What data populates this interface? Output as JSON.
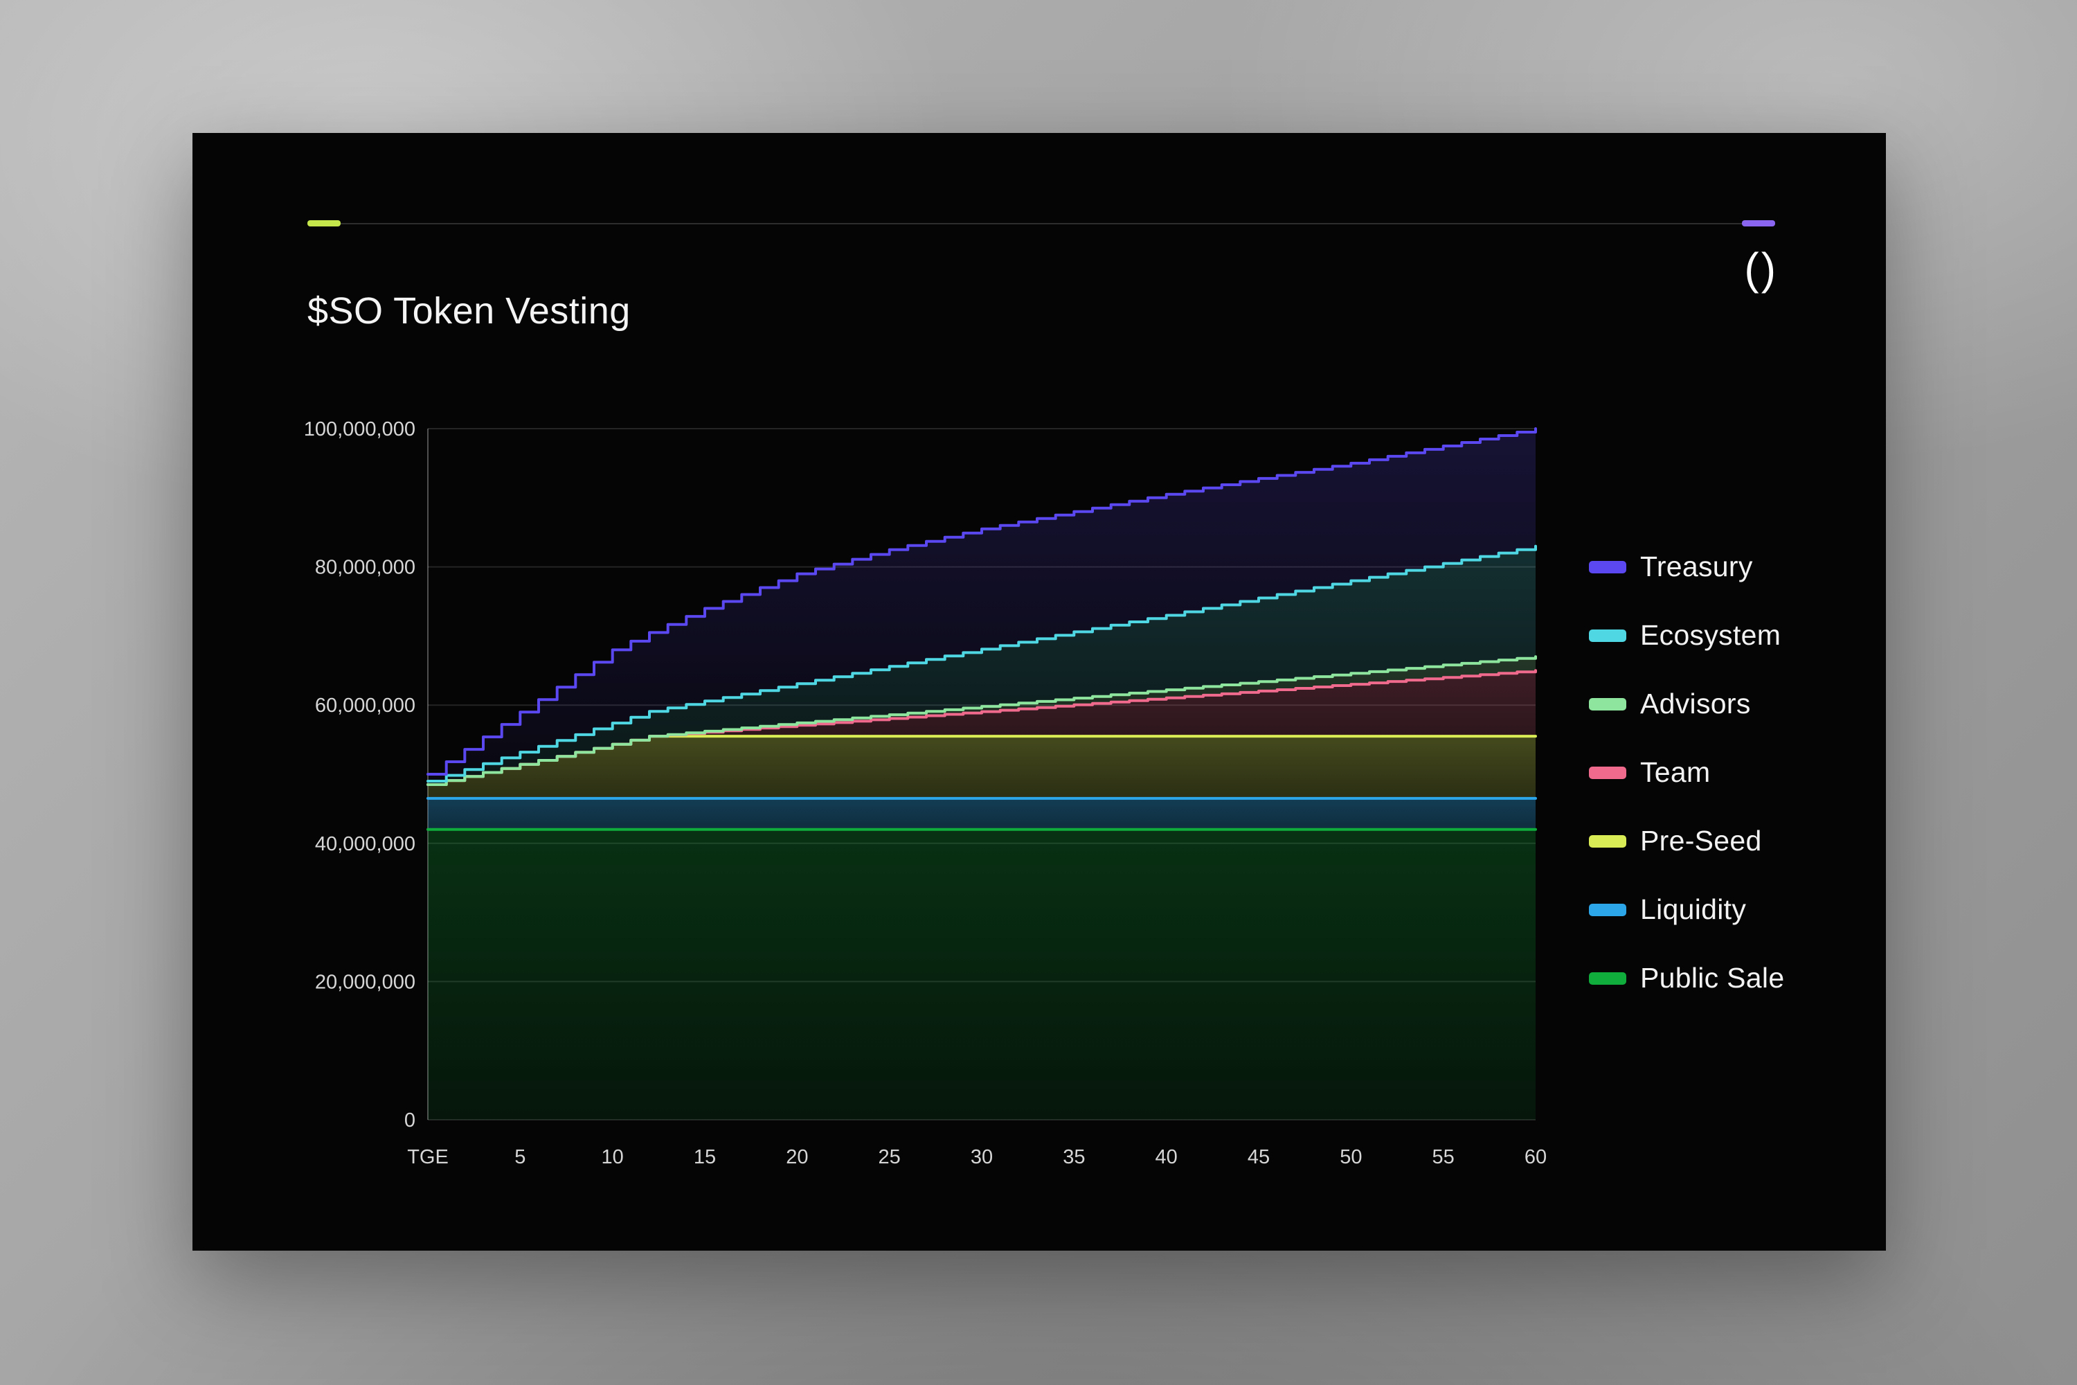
{
  "header": {
    "title": "$SO Token Vesting",
    "logo_text": "()",
    "rule": {
      "left_accent_color": "#c6e74b",
      "right_accent_color": "#8a66f0"
    }
  },
  "chart_data": {
    "type": "area",
    "stacked": true,
    "title": "$SO Token Vesting",
    "unit": "tokens",
    "grid": "horizontal",
    "legend_position": "right",
    "x_axis": {
      "tick_labels": [
        "TGE",
        "5",
        "10",
        "15",
        "20",
        "25",
        "30",
        "35",
        "40",
        "45",
        "50",
        "55",
        "60"
      ],
      "tick_months": [
        0,
        5,
        10,
        15,
        20,
        25,
        30,
        35,
        40,
        45,
        50,
        55,
        60
      ],
      "range_months": [
        0,
        60
      ]
    },
    "y_axis": {
      "tick_labels": [
        "0",
        "20,000,000",
        "40,000,000",
        "60,000,000",
        "80,000,000",
        "100,000,000"
      ],
      "tick_values": [
        0,
        20000000,
        40000000,
        60000000,
        80000000,
        100000000
      ],
      "max": 100000000
    },
    "anchor_months": [
      0,
      5,
      10,
      12,
      15,
      20,
      25,
      30,
      35,
      40,
      45,
      50,
      55,
      60
    ],
    "series_bottom_to_top": [
      {
        "name": "Public Sale",
        "color": "#10ad3c",
        "cumulative_top": [
          42000000,
          42000000,
          42000000,
          42000000,
          42000000,
          42000000,
          42000000,
          42000000,
          42000000,
          42000000,
          42000000,
          42000000,
          42000000,
          42000000
        ]
      },
      {
        "name": "Liquidity",
        "color": "#2da5e9",
        "cumulative_top": [
          46500000,
          46500000,
          46500000,
          46500000,
          46500000,
          46500000,
          46500000,
          46500000,
          46500000,
          46500000,
          46500000,
          46500000,
          46500000,
          46500000
        ]
      },
      {
        "name": "Pre-Seed",
        "color": "#d9eb55",
        "cumulative_top": [
          48500000,
          51420000,
          54330000,
          55500000,
          55500000,
          55500000,
          55500000,
          55500000,
          55500000,
          55500000,
          55500000,
          55500000,
          55500000,
          55500000
        ]
      },
      {
        "name": "Team",
        "color": "#ef6a8d",
        "cumulative_top": [
          48500000,
          51420000,
          54330000,
          55500000,
          56090000,
          57080000,
          58070000,
          59060000,
          60050000,
          61040000,
          62030000,
          63020000,
          64010000,
          65000000
        ]
      },
      {
        "name": "Advisors",
        "color": "#8ee59e",
        "cumulative_top": [
          48500000,
          51420000,
          54330000,
          55500000,
          56220000,
          57420000,
          58610000,
          59810000,
          61010000,
          62210000,
          63400000,
          64600000,
          65800000,
          67000000
        ]
      },
      {
        "name": "Ecosystem",
        "color": "#4fd8e3",
        "cumulative_top": [
          49000000,
          53200000,
          57400000,
          59100000,
          60600000,
          63100000,
          65600000,
          68100000,
          70600000,
          73000000,
          75500000,
          78000000,
          80500000,
          83000000
        ]
      },
      {
        "name": "Treasury",
        "color": "#5b48f0",
        "cumulative_top": [
          50000000,
          59000000,
          68000000,
          70500000,
          74000000,
          79000000,
          82500000,
          85500000,
          88000000,
          90500000,
          92800000,
          95000000,
          97500000,
          100000000
        ]
      }
    ]
  },
  "legend": {
    "items": [
      {
        "label": "Treasury",
        "color": "#5b48f0"
      },
      {
        "label": "Ecosystem",
        "color": "#4fd8e3"
      },
      {
        "label": "Advisors",
        "color": "#8ee59e"
      },
      {
        "label": "Team",
        "color": "#ef6a8d"
      },
      {
        "label": "Pre-Seed",
        "color": "#d9eb55"
      },
      {
        "label": "Liquidity",
        "color": "#2da5e9"
      },
      {
        "label": "Public Sale",
        "color": "#10ad3c"
      }
    ]
  }
}
